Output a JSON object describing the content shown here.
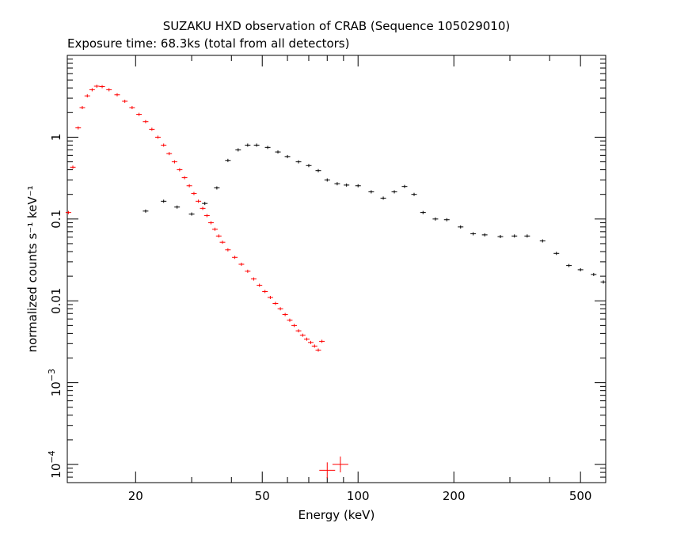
{
  "chart_data": {
    "type": "scatter",
    "title": "SUZAKU HXD observation of CRAB (Sequence 105029010)",
    "subtitle": "Exposure time: 68.3ks (total from all detectors)",
    "xlabel": "Energy (keV)",
    "ylabel": "normalized counts s⁻¹ keV⁻¹",
    "x_scale": "log",
    "y_scale": "log",
    "xlim": [
      12.2,
      600
    ],
    "ylim": [
      6e-05,
      10
    ],
    "x_ticks": [
      {
        "value": 20,
        "label": "20"
      },
      {
        "value": 50,
        "label": "50"
      },
      {
        "value": 100,
        "label": "100"
      },
      {
        "value": 200,
        "label": "200"
      },
      {
        "value": 500,
        "label": "500"
      }
    ],
    "y_ticks": [
      {
        "value": 0.0001,
        "label": "10",
        "exp": "−4"
      },
      {
        "value": 0.001,
        "label": "10",
        "exp": "−3"
      },
      {
        "value": 0.01,
        "label": "0.01",
        "exp": ""
      },
      {
        "value": 0.1,
        "label": "0.1",
        "exp": ""
      },
      {
        "value": 1,
        "label": "1",
        "exp": ""
      }
    ],
    "grid": false,
    "legend": "none",
    "series": [
      {
        "color": "#ff0000",
        "x": [
          12.3,
          12.7,
          13.2,
          13.6,
          14.1,
          14.6,
          15.1,
          15.7,
          16.5,
          17.5,
          18.5,
          19.5,
          20.5,
          21.5,
          22.5,
          23.5,
          24.5,
          25.5,
          26.5,
          27.5,
          28.5,
          29.5,
          30.5,
          31.5,
          32.5,
          33.5,
          34.5,
          35.5,
          36.5,
          37.5,
          39,
          41,
          43,
          45,
          47,
          49,
          51,
          53,
          55,
          57,
          59,
          61,
          63,
          65,
          67,
          69,
          71,
          73,
          75,
          77
        ],
        "y": [
          0.12,
          0.43,
          1.3,
          2.3,
          3.2,
          3.8,
          4.2,
          4.15,
          3.8,
          3.3,
          2.75,
          2.3,
          1.9,
          1.55,
          1.25,
          1.0,
          0.8,
          0.63,
          0.5,
          0.4,
          0.32,
          0.255,
          0.205,
          0.165,
          0.135,
          0.11,
          0.09,
          0.075,
          0.062,
          0.052,
          0.042,
          0.034,
          0.028,
          0.023,
          0.0185,
          0.0155,
          0.013,
          0.011,
          0.0093,
          0.008,
          0.0068,
          0.0058,
          0.005,
          0.0043,
          0.0038,
          0.0034,
          0.0031,
          0.0028,
          0.0025,
          0.0032
        ]
      },
      {
        "color": "#ff0000",
        "x": [
          80,
          88
        ],
        "y": [
          8.5e-05,
          0.0001
        ]
      },
      {
        "color": "#000000",
        "x": [
          21.5,
          24.5,
          27,
          30,
          33,
          36,
          39,
          42,
          45,
          48,
          52,
          56,
          60,
          65,
          70,
          75,
          80,
          86,
          92,
          100,
          110,
          120,
          130,
          140,
          150,
          160,
          175,
          190,
          210,
          230,
          250,
          280,
          310,
          340,
          380,
          420,
          460,
          500,
          550,
          590
        ],
        "y": [
          0.125,
          0.165,
          0.14,
          0.115,
          0.155,
          0.24,
          0.52,
          0.7,
          0.8,
          0.8,
          0.75,
          0.66,
          0.58,
          0.5,
          0.45,
          0.39,
          0.3,
          0.27,
          0.26,
          0.255,
          0.215,
          0.18,
          0.215,
          0.25,
          0.2,
          0.12,
          0.1,
          0.098,
          0.08,
          0.066,
          0.064,
          0.061,
          0.062,
          0.062,
          0.054,
          0.038,
          0.027,
          0.024,
          0.021,
          0.017
        ]
      }
    ]
  }
}
